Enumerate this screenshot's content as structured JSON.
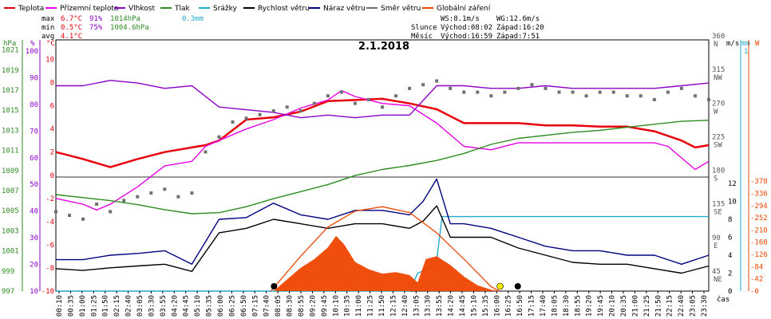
{
  "legend": [
    {
      "label": "Teplota",
      "color": "#e8000b"
    },
    {
      "label": "Přízemní teplota",
      "color": "#e600e6"
    },
    {
      "label": "Vlhkost",
      "color": "#8a00c8"
    },
    {
      "label": "Tlak",
      "color": "#2e8b22"
    },
    {
      "label": "Srážky",
      "color": "#22aacc"
    },
    {
      "label": "Rychlost větru",
      "color": "#000000"
    },
    {
      "label": "Náraz větru",
      "color": "#000080"
    },
    {
      "label": "Směr větru",
      "color": "#707070"
    },
    {
      "label": "Globální záření",
      "color": "#ee4400"
    }
  ],
  "stats": {
    "max": {
      "label": "max",
      "temp": "6.7°C",
      "hum": "91%",
      "press": "1014hPa",
      "rain": "0.3mm"
    },
    "min": {
      "label": "min",
      "temp": "0.5°C",
      "hum": "75%",
      "press": "1004.6hPa"
    },
    "avg": {
      "label": "avg",
      "temp": "4.1°C"
    }
  },
  "wind_info": {
    "ws": "WS:8.1m/s",
    "wg": "WG:12.6m/s"
  },
  "sun_info": {
    "label": "Slunce",
    "rise": "Východ:08:02",
    "set": "Západ:16:20"
  },
  "moon_info": {
    "label": "Měsíc",
    "rise": "Východ:16:59",
    "set": "Západ:7:51"
  },
  "unit_labels": {
    "hpa": "hPa",
    "pct": "%",
    "degc": "°C",
    "ms": "m/s",
    "mm": "mm",
    "w": "W",
    "cas": "čas"
  },
  "chart_data": {
    "type": "line",
    "title": "2.1.2018",
    "xlabel": "čas",
    "x_ticks": [
      "00:10",
      "00:35",
      "01:00",
      "01:25",
      "01:50",
      "02:15",
      "02:40",
      "03:05",
      "03:30",
      "03:55",
      "04:20",
      "04:45",
      "05:10",
      "05:35",
      "06:00",
      "06:25",
      "06:50",
      "07:15",
      "07:40",
      "08:05",
      "08:30",
      "08:55",
      "09:20",
      "09:45",
      "10:10",
      "10:35",
      "11:00",
      "11:25",
      "11:50",
      "12:15",
      "12:40",
      "13:05",
      "13:30",
      "13:55",
      "14:20",
      "14:45",
      "15:10",
      "15:35",
      "16:00",
      "16:25",
      "16:50",
      "17:15",
      "17:40",
      "18:05",
      "18:30",
      "18:55",
      "19:20",
      "19:45",
      "20:10",
      "20:35",
      "21:00",
      "21:25",
      "21:50",
      "22:15",
      "22:40",
      "23:05",
      "23:30"
    ],
    "axes": {
      "pressure": {
        "unit": "hPa",
        "range": [
          997,
          1022
        ],
        "ticks": [
          997,
          999,
          1001,
          1003,
          1005,
          1007,
          1009,
          1011,
          1013,
          1015,
          1017,
          1019,
          1021
        ]
      },
      "humidity": {
        "unit": "%",
        "range": [
          10,
          100
        ],
        "ticks": [
          10,
          20,
          30,
          40,
          50,
          60,
          70,
          80,
          90,
          100
        ]
      },
      "temperature": {
        "unit": "°C",
        "range": [
          -10,
          11
        ],
        "ticks": [
          -10,
          -8,
          -6,
          -4,
          -2,
          0,
          2,
          4,
          6,
          8,
          10
        ]
      },
      "direction": {
        "range": [
          45,
          360
        ],
        "ticks": [
          {
            "v": 360,
            "l": "N"
          },
          {
            "v": 315,
            "l": "NW"
          },
          {
            "v": 270,
            "l": "W"
          },
          {
            "v": 225,
            "l": "SW"
          },
          {
            "v": 180,
            "l": "S"
          },
          {
            "v": 135,
            "l": "SE"
          },
          {
            "v": 90,
            "l": "E"
          },
          {
            "v": 45,
            "l": "NE"
          }
        ]
      },
      "wind": {
        "unit": "m/s",
        "range": [
          0,
          12
        ],
        "ticks": [
          0,
          2,
          4,
          6,
          8,
          10,
          12
        ]
      },
      "rain": {
        "unit": "mm",
        "label_top": "1"
      },
      "radiation": {
        "unit": "W",
        "range": [
          0,
          392
        ],
        "ticks": [
          0,
          42,
          84,
          126,
          168,
          210,
          252,
          294,
          336,
          378
        ]
      }
    },
    "series": [
      {
        "name": "Teplota",
        "axis": "temperature",
        "color": "#e8000b",
        "x": [
          0,
          1,
          2,
          3,
          4,
          5,
          5.5,
          6,
          7,
          8,
          9,
          10,
          11,
          12,
          13,
          14,
          15,
          16,
          17,
          18,
          19,
          20,
          21,
          22,
          23,
          23.5,
          24
        ],
        "values": [
          2,
          1.4,
          0.7,
          1.4,
          2,
          2.4,
          2.6,
          3,
          4.8,
          5,
          5.5,
          6.4,
          6.5,
          6.6,
          6.2,
          5.7,
          4.5,
          4.5,
          4.5,
          4.3,
          4.3,
          4.2,
          4.2,
          3.8,
          3,
          2.4,
          2.6
        ]
      },
      {
        "name": "Přízemní teplota",
        "axis": "temperature",
        "color": "#e600e6",
        "x": [
          0,
          1,
          1.5,
          2,
          3,
          4,
          5,
          5.5,
          6,
          7,
          8,
          9,
          10,
          10.5,
          11,
          12,
          13,
          14,
          15,
          16,
          17,
          18,
          19,
          20,
          21,
          22,
          22.5,
          23,
          23.5,
          24
        ],
        "values": [
          -2,
          -2.5,
          -3,
          -2.5,
          -1,
          0.8,
          1.2,
          2.5,
          3,
          4,
          4.8,
          5.8,
          6.5,
          7.3,
          6.8,
          6.2,
          6,
          4.5,
          2.5,
          2.2,
          2.8,
          2.8,
          2.8,
          2.8,
          2.8,
          2.8,
          2.5,
          1.5,
          0.5,
          1.2
        ]
      },
      {
        "name": "Vlhkost",
        "axis": "humidity",
        "color": "#8a00c8",
        "x": [
          0,
          1,
          2,
          3,
          4,
          5,
          6,
          7,
          8,
          9,
          10,
          11,
          12,
          13,
          14,
          15,
          16,
          17,
          18,
          19,
          20,
          21,
          22,
          23,
          24
        ],
        "values": [
          87,
          87,
          89,
          88,
          86,
          87,
          79,
          78,
          77,
          75,
          76,
          75,
          76,
          76,
          87,
          87,
          86,
          86,
          87,
          86,
          86,
          86,
          86,
          87,
          88
        ]
      },
      {
        "name": "Tlak",
        "axis": "pressure",
        "color": "#2e8b22",
        "x": [
          0,
          1,
          2,
          3,
          4,
          5,
          6,
          7,
          8,
          9,
          10,
          11,
          12,
          13,
          14,
          15,
          16,
          17,
          18,
          19,
          20,
          21,
          22,
          23,
          24
        ],
        "values": [
          1006.6,
          1006.3,
          1006,
          1005.6,
          1005.1,
          1004.7,
          1004.8,
          1005.4,
          1006.2,
          1006.9,
          1007.6,
          1008.5,
          1009.1,
          1009.5,
          1010,
          1010.7,
          1011.6,
          1012.2,
          1012.5,
          1012.8,
          1013,
          1013.3,
          1013.6,
          1013.9,
          1014
        ]
      },
      {
        "name": "Srážky",
        "axis": "wind",
        "color": "#22aacc",
        "x": [
          0,
          13,
          13.3,
          13.7,
          14,
          14.2,
          24
        ],
        "values": [
          0,
          0,
          2,
          2.5,
          3.5,
          8.3,
          8.3
        ]
      },
      {
        "name": "Rychlost větru",
        "axis": "wind",
        "color": "#000000",
        "x": [
          0,
          1,
          2,
          3,
          4,
          5,
          6,
          7,
          8,
          9,
          10,
          11,
          12,
          13,
          13.5,
          14,
          14.5,
          15,
          16,
          17,
          18,
          19,
          20,
          21,
          22,
          23,
          24
        ],
        "values": [
          2.5,
          2.3,
          2.6,
          2.8,
          3,
          2.2,
          6.5,
          7,
          8,
          7.5,
          7,
          7.5,
          7.5,
          7,
          7.8,
          9.5,
          6,
          6,
          6,
          4.8,
          4,
          3.2,
          3,
          3,
          2.5,
          2,
          2.8
        ]
      },
      {
        "name": "Náraz větru",
        "axis": "wind",
        "color": "#000080",
        "x": [
          0,
          1,
          2,
          3,
          4,
          5,
          6,
          7,
          8,
          9,
          10,
          11,
          12,
          13,
          13.5,
          14,
          14.5,
          15,
          16,
          17,
          18,
          19,
          20,
          21,
          22,
          23,
          24
        ],
        "values": [
          3.5,
          3.5,
          4,
          4.2,
          4.5,
          3,
          8,
          8.2,
          9.8,
          8.5,
          8,
          9,
          9,
          8.5,
          10,
          12.5,
          7.5,
          7.5,
          7,
          6,
          5,
          4.5,
          4.5,
          4,
          4,
          3,
          4
        ]
      },
      {
        "name": "Směr větru",
        "axis": "direction",
        "color": "#707070",
        "type": "scatter",
        "x": [
          0,
          0.5,
          1,
          1.5,
          2,
          2.5,
          3,
          3.5,
          4,
          4.5,
          5,
          5.5,
          6,
          6.5,
          7,
          7.5,
          8,
          8.5,
          9,
          9.5,
          10,
          10.5,
          11,
          11.5,
          12,
          12.5,
          13,
          13.5,
          14,
          14.5,
          15,
          15.5,
          16,
          16.5,
          17,
          17.5,
          18,
          18.5,
          19,
          19.5,
          20,
          20.5,
          21,
          21.5,
          22,
          22.5,
          23,
          23.5,
          24
        ],
        "values": [
          130,
          125,
          120,
          140,
          130,
          145,
          150,
          155,
          160,
          150,
          155,
          210,
          230,
          250,
          255,
          260,
          265,
          270,
          265,
          275,
          285,
          290,
          275,
          280,
          270,
          285,
          295,
          300,
          305,
          295,
          290,
          290,
          285,
          290,
          295,
          300,
          295,
          290,
          290,
          285,
          290,
          290,
          285,
          285,
          280,
          290,
          295,
          285,
          280
        ]
      },
      {
        "name": "Globální záření",
        "axis": "radiation",
        "color": "#ee4400",
        "type": "area",
        "x": [
          8,
          8.5,
          9,
          9.5,
          10,
          10.3,
          10.6,
          11,
          11.5,
          12,
          12.5,
          13,
          13.3,
          13.6,
          14,
          14.5,
          15,
          15.5,
          16,
          16.3
        ],
        "values": [
          0,
          40,
          80,
          110,
          150,
          190,
          160,
          100,
          75,
          60,
          65,
          55,
          30,
          110,
          120,
          90,
          50,
          20,
          5,
          0
        ],
        "clear_sky": {
          "x": [
            7.9,
            9,
            10,
            11,
            12,
            13,
            14,
            15,
            16,
            16.3
          ],
          "values": [
            0,
            120,
            220,
            275,
            290,
            270,
            200,
            110,
            15,
            0
          ]
        }
      }
    ]
  }
}
